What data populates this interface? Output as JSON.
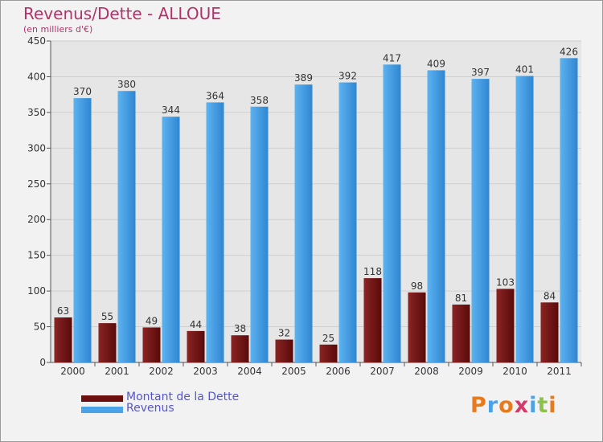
{
  "chart_data": {
    "type": "bar",
    "title": "Revenus/Dette - ALLOUE",
    "subtitle": "(en milliers d'€)",
    "categories": [
      "2000",
      "2001",
      "2002",
      "2003",
      "2004",
      "2005",
      "2006",
      "2007",
      "2008",
      "2009",
      "2010",
      "2011"
    ],
    "series": [
      {
        "name": "Montant de la Dette",
        "color": "#7a1a1a",
        "values": [
          63,
          55,
          49,
          44,
          38,
          32,
          25,
          118,
          98,
          81,
          103,
          84
        ]
      },
      {
        "name": "Revenus",
        "color": "#4aa3e8",
        "values": [
          370,
          380,
          344,
          364,
          358,
          389,
          392,
          417,
          409,
          397,
          401,
          426
        ]
      }
    ],
    "ylim": [
      0,
      450
    ],
    "yticks": [
      0,
      50,
      100,
      150,
      200,
      250,
      300,
      350,
      400,
      450
    ],
    "grid": true,
    "legend": "bottom-left"
  },
  "logo": {
    "text": "Proxiti",
    "colors": [
      "#e87a1e",
      "#4aa3e8",
      "#e87a1e",
      "#d63a6a",
      "#4aa3e8",
      "#8bc34a",
      "#e87a1e"
    ]
  }
}
